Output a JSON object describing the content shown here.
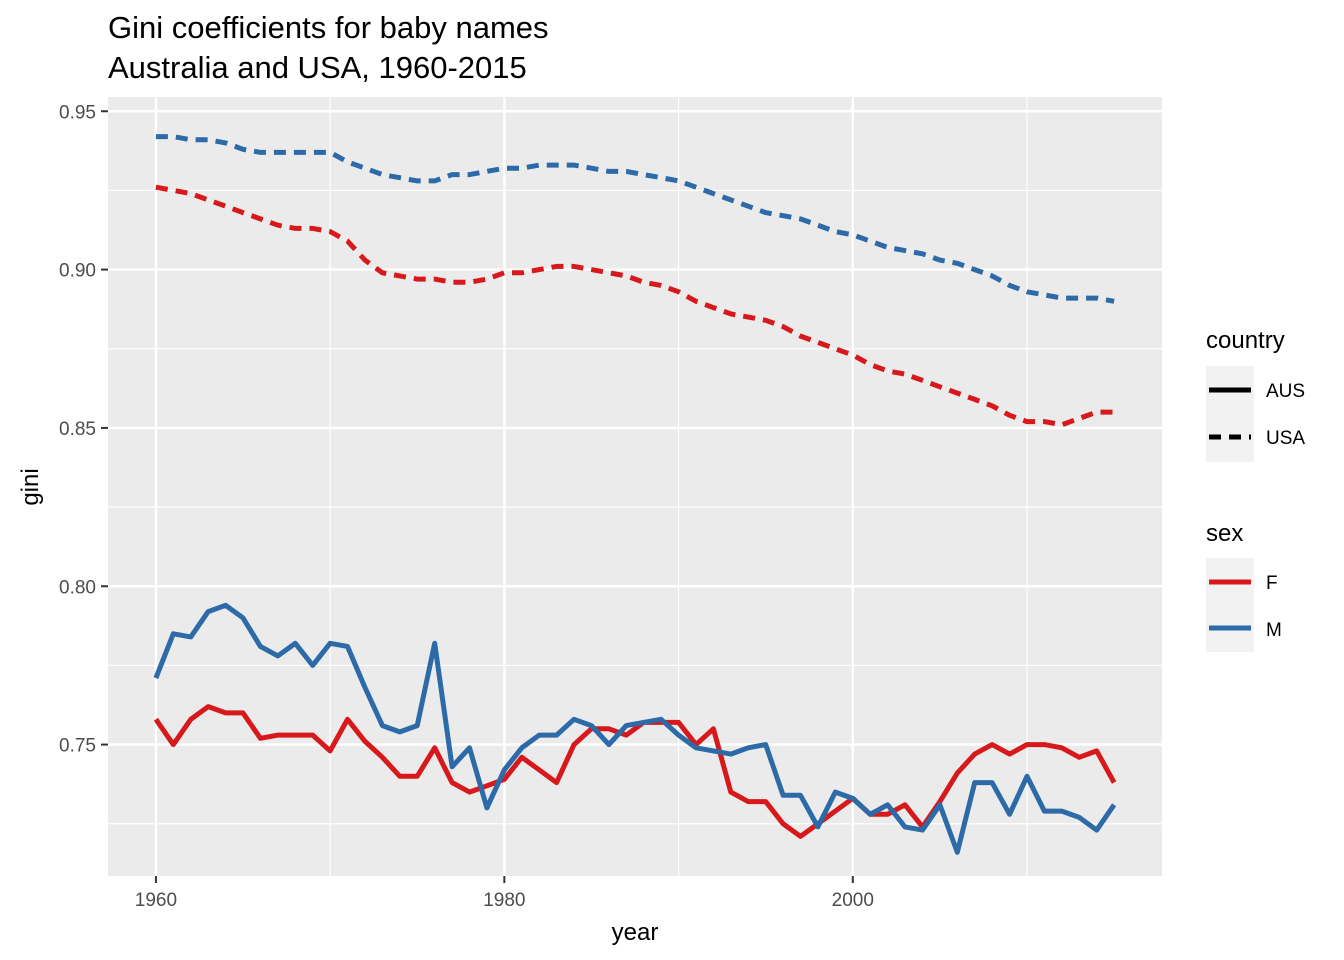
{
  "chart_data": {
    "type": "line",
    "title": "Gini coefficients for baby names",
    "subtitle": "Australia and USA, 1960-2015",
    "xlabel": "year",
    "ylabel": "gini",
    "xlim": [
      1957.25,
      2017.75
    ],
    "ylim": [
      0.7085,
      0.9545
    ],
    "x_ticks": [
      1960,
      1980,
      2000
    ],
    "x_tick_labels": [
      "1960",
      "1980",
      "2000"
    ],
    "y_ticks": [
      0.75,
      0.8,
      0.85,
      0.9,
      0.95
    ],
    "y_tick_labels": [
      "0.75",
      "0.80",
      "0.85",
      "0.90",
      "0.95"
    ],
    "grid": true,
    "legend_position": "right",
    "legends": [
      {
        "title": "country",
        "entries": [
          {
            "label": "AUS",
            "linetype": "solid"
          },
          {
            "label": "USA",
            "linetype": "dashed"
          }
        ]
      },
      {
        "title": "sex",
        "entries": [
          {
            "label": "F",
            "color": "#d7191c"
          },
          {
            "label": "M",
            "color": "#2c6aa8"
          }
        ]
      }
    ],
    "series": [
      {
        "country": "AUS",
        "sex": "F",
        "x": [
          1960,
          1961,
          1962,
          1963,
          1964,
          1965,
          1966,
          1967,
          1968,
          1969,
          1970,
          1971,
          1972,
          1973,
          1974,
          1975,
          1976,
          1977,
          1978,
          1979,
          1980,
          1981,
          1982,
          1983,
          1984,
          1985,
          1986,
          1987,
          1988,
          1989,
          1990,
          1991,
          1992,
          1993,
          1994,
          1995,
          1996,
          1997,
          1998,
          1999,
          2000,
          2001,
          2002,
          2003,
          2004,
          2005,
          2006,
          2007,
          2008,
          2009,
          2010,
          2011,
          2012,
          2013,
          2014,
          2015
        ],
        "y": [
          0.758,
          0.75,
          0.758,
          0.762,
          0.76,
          0.76,
          0.752,
          0.753,
          0.753,
          0.753,
          0.748,
          0.758,
          0.751,
          0.746,
          0.74,
          0.74,
          0.749,
          0.738,
          0.735,
          0.737,
          0.739,
          0.746,
          0.742,
          0.738,
          0.75,
          0.755,
          0.755,
          0.753,
          0.757,
          0.757,
          0.757,
          0.75,
          0.755,
          0.735,
          0.732,
          0.732,
          0.725,
          0.721,
          0.725,
          0.729,
          0.733,
          0.728,
          0.728,
          0.731,
          0.724,
          0.732,
          0.741,
          0.747,
          0.75,
          0.747,
          0.75,
          0.75,
          0.749,
          0.746,
          0.748,
          0.738
        ]
      },
      {
        "country": "AUS",
        "sex": "M",
        "x": [
          1960,
          1961,
          1962,
          1963,
          1964,
          1965,
          1966,
          1967,
          1968,
          1969,
          1970,
          1971,
          1972,
          1973,
          1974,
          1975,
          1976,
          1977,
          1978,
          1979,
          1980,
          1981,
          1982,
          1983,
          1984,
          1985,
          1986,
          1987,
          1988,
          1989,
          1990,
          1991,
          1992,
          1993,
          1994,
          1995,
          1996,
          1997,
          1998,
          1999,
          2000,
          2001,
          2002,
          2003,
          2004,
          2005,
          2006,
          2007,
          2008,
          2009,
          2010,
          2011,
          2012,
          2013,
          2014,
          2015
        ],
        "y": [
          0.771,
          0.785,
          0.784,
          0.792,
          0.794,
          0.79,
          0.781,
          0.778,
          0.782,
          0.775,
          0.782,
          0.781,
          0.768,
          0.756,
          0.754,
          0.756,
          0.782,
          0.743,
          0.749,
          0.73,
          0.742,
          0.749,
          0.753,
          0.753,
          0.758,
          0.756,
          0.75,
          0.756,
          0.757,
          0.758,
          0.753,
          0.749,
          0.748,
          0.747,
          0.749,
          0.75,
          0.734,
          0.734,
          0.724,
          0.735,
          0.733,
          0.728,
          0.731,
          0.724,
          0.723,
          0.731,
          0.716,
          0.738,
          0.738,
          0.728,
          0.74,
          0.729,
          0.729,
          0.727,
          0.723,
          0.731
        ]
      },
      {
        "country": "USA",
        "sex": "F",
        "x": [
          1960,
          1961,
          1962,
          1963,
          1964,
          1965,
          1966,
          1967,
          1968,
          1969,
          1970,
          1971,
          1972,
          1973,
          1974,
          1975,
          1976,
          1977,
          1978,
          1979,
          1980,
          1981,
          1982,
          1983,
          1984,
          1985,
          1986,
          1987,
          1988,
          1989,
          1990,
          1991,
          1992,
          1993,
          1994,
          1995,
          1996,
          1997,
          1998,
          1999,
          2000,
          2001,
          2002,
          2003,
          2004,
          2005,
          2006,
          2007,
          2008,
          2009,
          2010,
          2011,
          2012,
          2013,
          2014,
          2015
        ],
        "y": [
          0.926,
          0.925,
          0.924,
          0.922,
          0.92,
          0.918,
          0.916,
          0.914,
          0.913,
          0.913,
          0.912,
          0.909,
          0.903,
          0.899,
          0.898,
          0.897,
          0.897,
          0.896,
          0.896,
          0.897,
          0.899,
          0.899,
          0.9,
          0.901,
          0.901,
          0.9,
          0.899,
          0.898,
          0.896,
          0.895,
          0.893,
          0.89,
          0.888,
          0.886,
          0.885,
          0.884,
          0.882,
          0.879,
          0.877,
          0.875,
          0.873,
          0.87,
          0.868,
          0.867,
          0.865,
          0.863,
          0.861,
          0.859,
          0.857,
          0.854,
          0.852,
          0.852,
          0.851,
          0.853,
          0.855,
          0.855
        ]
      },
      {
        "country": "USA",
        "sex": "M",
        "x": [
          1960,
          1961,
          1962,
          1963,
          1964,
          1965,
          1966,
          1967,
          1968,
          1969,
          1970,
          1971,
          1972,
          1973,
          1974,
          1975,
          1976,
          1977,
          1978,
          1979,
          1980,
          1981,
          1982,
          1983,
          1984,
          1985,
          1986,
          1987,
          1988,
          1989,
          1990,
          1991,
          1992,
          1993,
          1994,
          1995,
          1996,
          1997,
          1998,
          1999,
          2000,
          2001,
          2002,
          2003,
          2004,
          2005,
          2006,
          2007,
          2008,
          2009,
          2010,
          2011,
          2012,
          2013,
          2014,
          2015
        ],
        "y": [
          0.942,
          0.942,
          0.941,
          0.941,
          0.94,
          0.938,
          0.937,
          0.937,
          0.937,
          0.937,
          0.937,
          0.934,
          0.932,
          0.93,
          0.929,
          0.928,
          0.928,
          0.93,
          0.93,
          0.931,
          0.932,
          0.932,
          0.933,
          0.933,
          0.933,
          0.932,
          0.931,
          0.931,
          0.93,
          0.929,
          0.928,
          0.926,
          0.924,
          0.922,
          0.92,
          0.918,
          0.917,
          0.916,
          0.914,
          0.912,
          0.911,
          0.909,
          0.907,
          0.906,
          0.905,
          0.903,
          0.902,
          0.9,
          0.898,
          0.895,
          0.893,
          0.892,
          0.891,
          0.891,
          0.891,
          0.89
        ]
      }
    ]
  }
}
